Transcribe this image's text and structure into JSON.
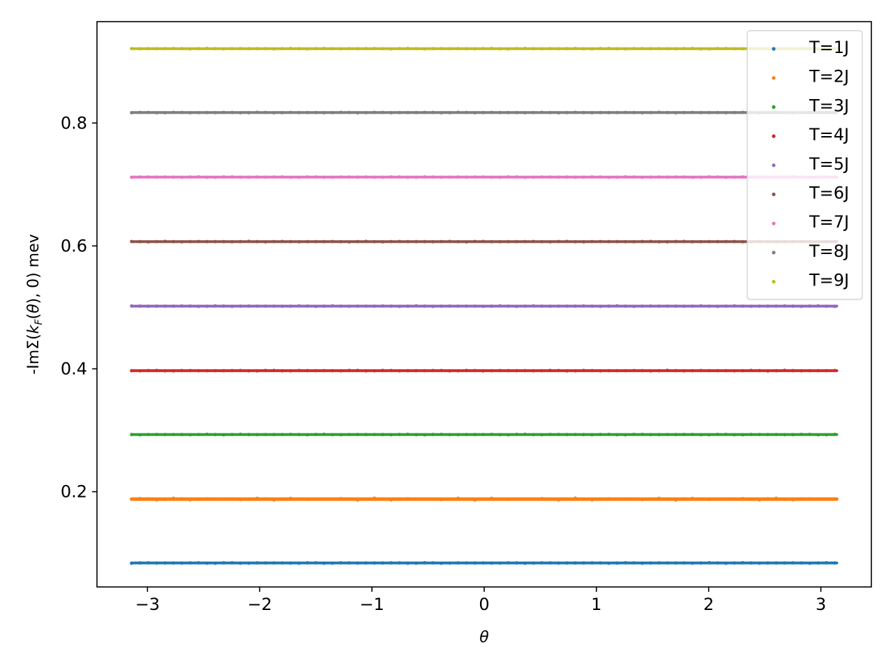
{
  "chart_data": {
    "type": "scatter",
    "title": "",
    "xlabel": "θ",
    "ylabel": "-ImΣ(k_F(θ), 0) mev",
    "ylabel_parts": {
      "prefix": "-ImΣ(",
      "k": "k",
      "sub": "F",
      "open": "(",
      "theta": "θ",
      "suffix": "), 0) mev"
    },
    "xlim": [
      -3.45,
      3.45
    ],
    "ylim": [
      0.045,
      0.965
    ],
    "x_range": [
      -3.14159,
      3.14159
    ],
    "x_ticks": [
      -3,
      -2,
      -1,
      0,
      1,
      2,
      3
    ],
    "x_tick_labels": [
      "−3",
      "−2",
      "−1",
      "0",
      "1",
      "2",
      "3"
    ],
    "y_ticks": [
      0.2,
      0.4,
      0.6,
      0.8
    ],
    "y_tick_labels": [
      "0.2",
      "0.4",
      "0.6",
      "0.8"
    ],
    "grid": false,
    "legend_position": "top-right",
    "series": [
      {
        "name": "T=1J",
        "color": "#1f77b4",
        "value": 0.084
      },
      {
        "name": "T=2J",
        "color": "#ff7f0e",
        "value": 0.188
      },
      {
        "name": "T=3J",
        "color": "#2ca02c",
        "value": 0.293
      },
      {
        "name": "T=4J",
        "color": "#d62728",
        "value": 0.397
      },
      {
        "name": "T=5J",
        "color": "#9467bd",
        "value": 0.502
      },
      {
        "name": "T=6J",
        "color": "#8c564b",
        "value": 0.607
      },
      {
        "name": "T=7J",
        "color": "#e377c2",
        "value": 0.712
      },
      {
        "name": "T=8J",
        "color": "#7f7f7f",
        "value": 0.817
      },
      {
        "name": "T=9J",
        "color": "#bcbd22",
        "value": 0.921
      }
    ]
  }
}
